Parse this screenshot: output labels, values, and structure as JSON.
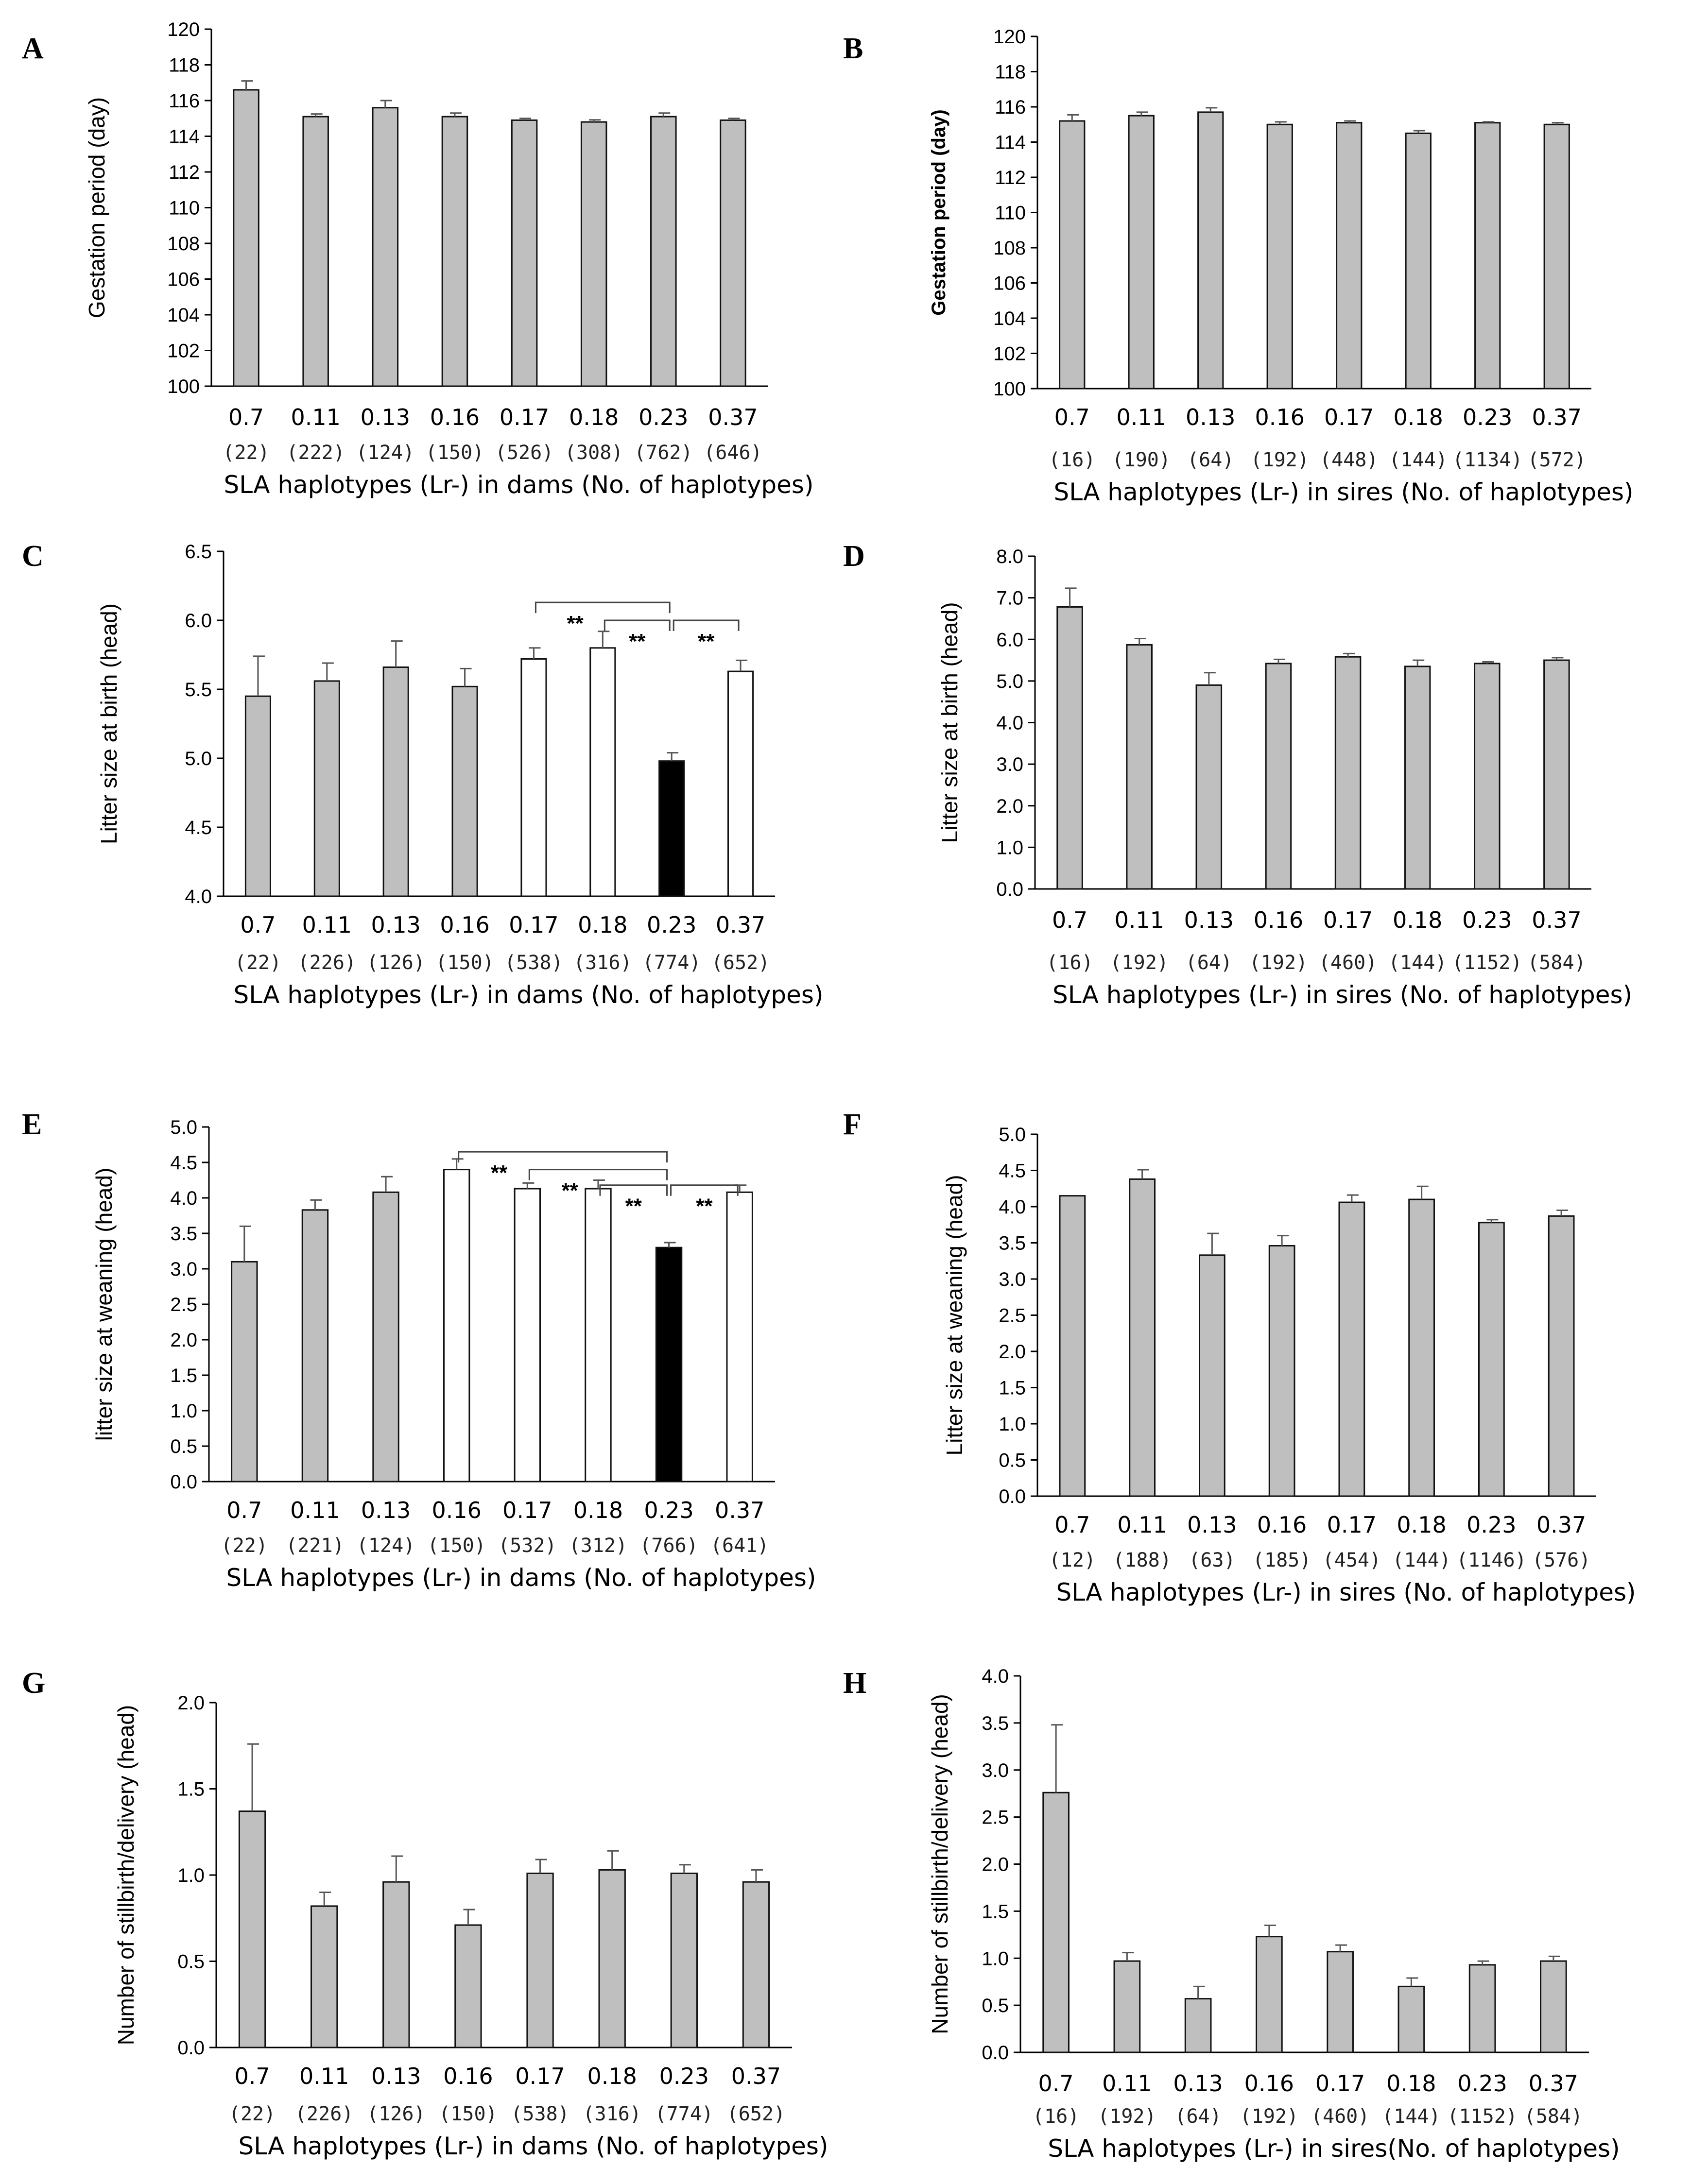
{
  "colors": {
    "gray": "#bfbfbf",
    "white": "#ffffff",
    "black": "#000000",
    "edge": "#111111",
    "err": "#555555"
  },
  "chart_data": [
    {
      "panel": "A",
      "type": "bar",
      "categories": [
        "0.7",
        "0.11",
        "0.13",
        "0.16",
        "0.17",
        "0.18",
        "0.23",
        "0.37"
      ],
      "counts": [
        "(22)",
        "(222)",
        "(124)",
        "(150)",
        "(526)",
        "(308)",
        "(762)",
        "(646)"
      ],
      "values": [
        116.6,
        115.1,
        115.6,
        115.1,
        114.9,
        114.8,
        115.1,
        114.9
      ],
      "errors": [
        0.5,
        0.15,
        0.4,
        0.2,
        0.1,
        0.12,
        0.2,
        0.1
      ],
      "fills": [
        "gray",
        "gray",
        "gray",
        "gray",
        "gray",
        "gray",
        "gray",
        "gray"
      ],
      "ylim": [
        100,
        120
      ],
      "yticks": [
        "100",
        "102",
        "104",
        "106",
        "108",
        "110",
        "112",
        "114",
        "116",
        "118",
        "120"
      ],
      "ylabel": "Gestation period (day)",
      "xlabel": "SLA  haplotypes (Lr-) in dams (No. of haplotypes)",
      "sig": []
    },
    {
      "panel": "B",
      "type": "bar",
      "categories": [
        "0.7",
        "0.11",
        "0.13",
        "0.16",
        "0.17",
        "0.18",
        "0.23",
        "0.37"
      ],
      "counts": [
        "(16)",
        "(190)",
        "(64)",
        "(192)",
        "(448)",
        "(144)",
        "(1134)",
        "(572)"
      ],
      "values": [
        115.2,
        115.5,
        115.7,
        115.0,
        115.1,
        114.5,
        115.1,
        115.0
      ],
      "errors": [
        0.35,
        0.2,
        0.25,
        0.15,
        0.1,
        0.15,
        0.05,
        0.1
      ],
      "fills": [
        "gray",
        "gray",
        "gray",
        "gray",
        "gray",
        "gray",
        "gray",
        "gray"
      ],
      "ylim": [
        100,
        120
      ],
      "yticks": [
        "100",
        "102",
        "104",
        "106",
        "108",
        "110",
        "112",
        "114",
        "116",
        "118",
        "120"
      ],
      "ylabel": "Gestation period (day)",
      "xlabel": "SLA haplotypes (Lr-) in sires (No. of haplotypes)",
      "sig": []
    },
    {
      "panel": "C",
      "type": "bar",
      "categories": [
        "0.7",
        "0.11",
        "0.13",
        "0.16",
        "0.17",
        "0.18",
        "0.23",
        "0.37"
      ],
      "counts": [
        "(22)",
        "(226)",
        "(126)",
        "(150)",
        "(538)",
        "(316)",
        "(774)",
        "(652)"
      ],
      "values": [
        5.45,
        5.56,
        5.66,
        5.52,
        5.72,
        5.8,
        4.98,
        5.63
      ],
      "errors": [
        0.29,
        0.13,
        0.19,
        0.13,
        0.08,
        0.12,
        0.06,
        0.08
      ],
      "fills": [
        "gray",
        "gray",
        "gray",
        "gray",
        "white",
        "white",
        "black",
        "white"
      ],
      "ylim": [
        4.0,
        6.5
      ],
      "yticks": [
        "4.0",
        "4.5",
        "5.0",
        "5.5",
        "6.0",
        "6.5"
      ],
      "ylabel": "Litter size  at birth  (head)",
      "xlabel": "SLA haplotypes (Lr-) in dams (No. of haplotypes)",
      "sig": [
        {
          "from": 4,
          "to": 6,
          "level": 6.13,
          "label": "**"
        },
        {
          "from": 5,
          "to": 6,
          "level": 6.0,
          "label": "**"
        },
        {
          "from": 6,
          "to": 7,
          "level": 6.0,
          "label": "**"
        }
      ]
    },
    {
      "panel": "D",
      "type": "bar",
      "categories": [
        "0.7",
        "0.11",
        "0.13",
        "0.16",
        "0.17",
        "0.18",
        "0.23",
        "0.37"
      ],
      "counts": [
        "(16)",
        "(192)",
        "(64)",
        "(192)",
        "(460)",
        "(144)",
        "(1152)",
        "(584)"
      ],
      "values": [
        6.78,
        5.87,
        4.9,
        5.42,
        5.58,
        5.35,
        5.42,
        5.5
      ],
      "errors": [
        0.45,
        0.15,
        0.3,
        0.1,
        0.08,
        0.15,
        0.04,
        0.06
      ],
      "fills": [
        "gray",
        "gray",
        "gray",
        "gray",
        "gray",
        "gray",
        "gray",
        "gray"
      ],
      "ylim": [
        0,
        8
      ],
      "yticks": [
        "0.0",
        "1.0",
        "2.0",
        "3.0",
        "4.0",
        "5.0",
        "6.0",
        "7.0",
        "8.0"
      ],
      "ylabel": "Litter size  at birth  (head)",
      "xlabel": "SLA haplotypes (Lr-) in sires (No. of haplotypes)",
      "sig": []
    },
    {
      "panel": "E",
      "type": "bar",
      "categories": [
        "0.7",
        "0.11",
        "0.13",
        "0.16",
        "0.17",
        "0.18",
        "0.23",
        "0.37"
      ],
      "counts": [
        "(22)",
        "(221)",
        "(124)",
        "(150)",
        "(532)",
        "(312)",
        "(766)",
        "(641)"
      ],
      "values": [
        3.1,
        3.83,
        4.08,
        4.4,
        4.13,
        4.13,
        3.3,
        4.08
      ],
      "errors": [
        0.5,
        0.14,
        0.22,
        0.15,
        0.08,
        0.12,
        0.07,
        0.1
      ],
      "fills": [
        "gray",
        "gray",
        "gray",
        "white",
        "white",
        "white",
        "black",
        "white"
      ],
      "ylim": [
        0,
        5
      ],
      "yticks": [
        "0.0",
        "0.5",
        "1.0",
        "1.5",
        "2.0",
        "2.5",
        "3.0",
        "3.5",
        "4.0",
        "4.5",
        "5.0"
      ],
      "ylabel": "litter size at weaning (head)",
      "xlabel": "SLA haplotypes (Lr-) in dams (No. of haplotypes)",
      "sig": [
        {
          "from": 3,
          "to": 6,
          "level": 4.65,
          "label": "**"
        },
        {
          "from": 4,
          "to": 6,
          "level": 4.4,
          "label": "**"
        },
        {
          "from": 5,
          "to": 6,
          "level": 4.18,
          "label": "**"
        },
        {
          "from": 6,
          "to": 7,
          "level": 4.18,
          "label": "**"
        }
      ]
    },
    {
      "panel": "F",
      "type": "bar",
      "categories": [
        "0.7",
        "0.11",
        "0.13",
        "0.16",
        "0.17",
        "0.18",
        "0.23",
        "0.37"
      ],
      "counts": [
        "(12)",
        "(188)",
        "(63)",
        "(185)",
        "(454)",
        "(144)",
        "(1146)",
        "(576)"
      ],
      "values": [
        4.15,
        4.38,
        3.33,
        3.46,
        4.06,
        4.1,
        3.78,
        3.87
      ],
      "errors": [
        0.0,
        0.13,
        0.3,
        0.14,
        0.1,
        0.18,
        0.04,
        0.08
      ],
      "fills": [
        "gray",
        "gray",
        "gray",
        "gray",
        "gray",
        "gray",
        "gray",
        "gray"
      ],
      "ylim": [
        0,
        5
      ],
      "yticks": [
        "0.0",
        "0.5",
        "1.0",
        "1.5",
        "2.0",
        "2.5",
        "3.0",
        "3.5",
        "4.0",
        "4.5",
        "5.0"
      ],
      "ylabel": "Litter size at weaning (head)",
      "xlabel": "SLA haplotypes (Lr-) in sires (No. of haplotypes)",
      "sig": []
    },
    {
      "panel": "G",
      "type": "bar",
      "categories": [
        "0.7",
        "0.11",
        "0.13",
        "0.16",
        "0.17",
        "0.18",
        "0.23",
        "0.37"
      ],
      "counts": [
        "(22)",
        "(226)",
        "(126)",
        "(150)",
        "(538)",
        "(316)",
        "(774)",
        "(652)"
      ],
      "values": [
        1.37,
        0.82,
        0.96,
        0.71,
        1.01,
        1.03,
        1.01,
        0.96
      ],
      "errors": [
        0.39,
        0.08,
        0.15,
        0.09,
        0.08,
        0.11,
        0.05,
        0.07
      ],
      "fills": [
        "gray",
        "gray",
        "gray",
        "gray",
        "gray",
        "gray",
        "gray",
        "gray"
      ],
      "ylim": [
        0,
        2
      ],
      "yticks": [
        "0.0",
        "0.5",
        "1.0",
        "1.5",
        "2.0"
      ],
      "ylabel": "Number of stillbirth/delivery (head)",
      "xlabel": "SLA haplotypes (Lr-) in dams (No. of haplotypes)",
      "sig": []
    },
    {
      "panel": "H",
      "type": "bar",
      "categories": [
        "0.7",
        "0.11",
        "0.13",
        "0.16",
        "0.17",
        "0.18",
        "0.23",
        "0.37"
      ],
      "counts": [
        "(16)",
        "(192)",
        "(64)",
        "(192)",
        "(460)",
        "(144)",
        "(1152)",
        "(584)"
      ],
      "values": [
        2.76,
        0.97,
        0.57,
        1.23,
        1.07,
        0.7,
        0.93,
        0.97
      ],
      "errors": [
        0.72,
        0.09,
        0.13,
        0.12,
        0.07,
        0.09,
        0.04,
        0.05
      ],
      "fills": [
        "gray",
        "gray",
        "gray",
        "gray",
        "gray",
        "gray",
        "gray",
        "gray"
      ],
      "ylim": [
        0,
        4
      ],
      "yticks": [
        "0.0",
        "0.5",
        "1.0",
        "1.5",
        "2.0",
        "2.5",
        "3.0",
        "3.5",
        "4.0"
      ],
      "ylabel": "Number of stillbirth/delivery (head)",
      "xlabel": "SLA haplotypes (Lr-) in sires(No. of haplotypes)",
      "sig": []
    }
  ]
}
